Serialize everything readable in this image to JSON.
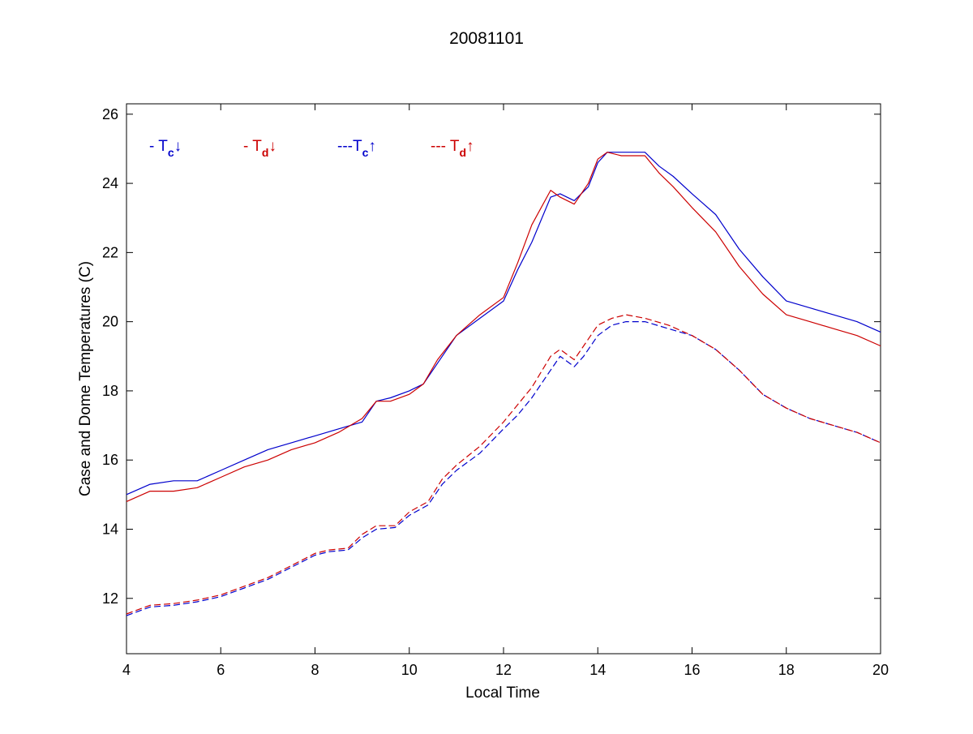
{
  "chart_data": {
    "type": "line",
    "title": "20081101",
    "xlabel": "Local Time",
    "ylabel": "Case and Dome Temperatures (C)",
    "xlim": [
      4,
      20
    ],
    "ylim": [
      10.4,
      26.3
    ],
    "xticks": [
      4,
      6,
      8,
      10,
      12,
      14,
      16,
      18,
      20
    ],
    "yticks": [
      12,
      14,
      16,
      18,
      20,
      22,
      24,
      26
    ],
    "grid": false,
    "legend_position": "top-left inside",
    "legend": [
      {
        "prefix": "- T",
        "sub": "c",
        "arrow": "↓",
        "color": "#0000cc"
      },
      {
        "prefix": "- T",
        "sub": "d",
        "arrow": "↓",
        "color": "#cc0000"
      },
      {
        "prefix": "---T",
        "sub": "c",
        "arrow": "↑",
        "color": "#0000cc"
      },
      {
        "prefix": "--- T",
        "sub": "d",
        "arrow": "↑",
        "color": "#cc0000"
      }
    ],
    "series": [
      {
        "color": "#0000cc",
        "dashed": false,
        "x": [
          4.0,
          4.5,
          5.0,
          5.5,
          6.0,
          6.5,
          7.0,
          7.5,
          8.0,
          8.5,
          9.0,
          9.3,
          9.6,
          10.0,
          10.3,
          10.6,
          11.0,
          11.5,
          12.0,
          12.3,
          12.6,
          13.0,
          13.2,
          13.5,
          13.8,
          14.0,
          14.2,
          14.5,
          14.8,
          15.0,
          15.3,
          15.6,
          16.0,
          16.5,
          17.0,
          17.5,
          18.0,
          18.5,
          19.0,
          19.5,
          20.0
        ],
        "y": [
          15.0,
          15.3,
          15.4,
          15.4,
          15.7,
          16.0,
          16.3,
          16.5,
          16.7,
          16.9,
          17.1,
          17.7,
          17.8,
          18.0,
          18.2,
          18.8,
          19.6,
          20.1,
          20.6,
          21.5,
          22.3,
          23.6,
          23.7,
          23.5,
          23.9,
          24.6,
          24.9,
          24.9,
          24.9,
          24.9,
          24.5,
          24.2,
          23.7,
          23.1,
          22.1,
          21.3,
          20.6,
          20.4,
          20.2,
          20.0,
          19.7
        ]
      },
      {
        "color": "#cc0000",
        "dashed": false,
        "x": [
          4.0,
          4.5,
          5.0,
          5.5,
          6.0,
          6.5,
          7.0,
          7.5,
          8.0,
          8.5,
          9.0,
          9.3,
          9.6,
          10.0,
          10.3,
          10.6,
          11.0,
          11.5,
          12.0,
          12.3,
          12.6,
          13.0,
          13.2,
          13.5,
          13.8,
          14.0,
          14.2,
          14.5,
          14.8,
          15.0,
          15.3,
          15.6,
          16.0,
          16.5,
          17.0,
          17.5,
          18.0,
          18.5,
          19.0,
          19.5,
          20.0
        ],
        "y": [
          14.8,
          15.1,
          15.1,
          15.2,
          15.5,
          15.8,
          16.0,
          16.3,
          16.5,
          16.8,
          17.2,
          17.7,
          17.7,
          17.9,
          18.2,
          18.9,
          19.6,
          20.2,
          20.7,
          21.7,
          22.8,
          23.8,
          23.6,
          23.4,
          24.0,
          24.7,
          24.9,
          24.8,
          24.8,
          24.8,
          24.3,
          23.9,
          23.3,
          22.6,
          21.6,
          20.8,
          20.2,
          20.0,
          19.8,
          19.6,
          19.3
        ]
      },
      {
        "color": "#0000cc",
        "dashed": true,
        "x": [
          4.0,
          4.5,
          5.0,
          5.5,
          6.0,
          6.5,
          7.0,
          7.5,
          8.0,
          8.3,
          8.7,
          9.0,
          9.3,
          9.7,
          10.0,
          10.4,
          10.7,
          11.0,
          11.5,
          12.0,
          12.3,
          12.6,
          13.0,
          13.2,
          13.5,
          13.7,
          14.0,
          14.3,
          14.6,
          15.0,
          15.5,
          16.0,
          16.5,
          17.0,
          17.5,
          18.0,
          18.5,
          19.0,
          19.5,
          20.0
        ],
        "y": [
          11.5,
          11.75,
          11.8,
          11.9,
          12.05,
          12.3,
          12.55,
          12.9,
          13.25,
          13.35,
          13.4,
          13.75,
          14.0,
          14.05,
          14.4,
          14.7,
          15.3,
          15.7,
          16.2,
          16.9,
          17.3,
          17.8,
          18.6,
          19.0,
          18.7,
          19.0,
          19.6,
          19.9,
          20.0,
          20.0,
          19.8,
          19.6,
          19.2,
          18.6,
          17.9,
          17.5,
          17.2,
          17.0,
          16.8,
          16.5
        ]
      },
      {
        "color": "#cc0000",
        "dashed": true,
        "x": [
          4.0,
          4.5,
          5.0,
          5.5,
          6.0,
          6.5,
          7.0,
          7.5,
          8.0,
          8.3,
          8.7,
          9.0,
          9.3,
          9.7,
          10.0,
          10.4,
          10.7,
          11.0,
          11.5,
          12.0,
          12.3,
          12.6,
          13.0,
          13.2,
          13.5,
          13.7,
          14.0,
          14.3,
          14.6,
          15.0,
          15.5,
          16.0,
          16.5,
          17.0,
          17.5,
          18.0,
          18.5,
          19.0,
          19.5,
          20.0
        ],
        "y": [
          11.55,
          11.8,
          11.85,
          11.95,
          12.1,
          12.35,
          12.6,
          12.95,
          13.3,
          13.4,
          13.45,
          13.85,
          14.1,
          14.1,
          14.5,
          14.8,
          15.45,
          15.85,
          16.4,
          17.1,
          17.6,
          18.1,
          19.0,
          19.2,
          18.9,
          19.3,
          19.9,
          20.1,
          20.2,
          20.1,
          19.9,
          19.6,
          19.2,
          18.6,
          17.9,
          17.5,
          17.2,
          17.0,
          16.8,
          16.5
        ]
      }
    ]
  }
}
